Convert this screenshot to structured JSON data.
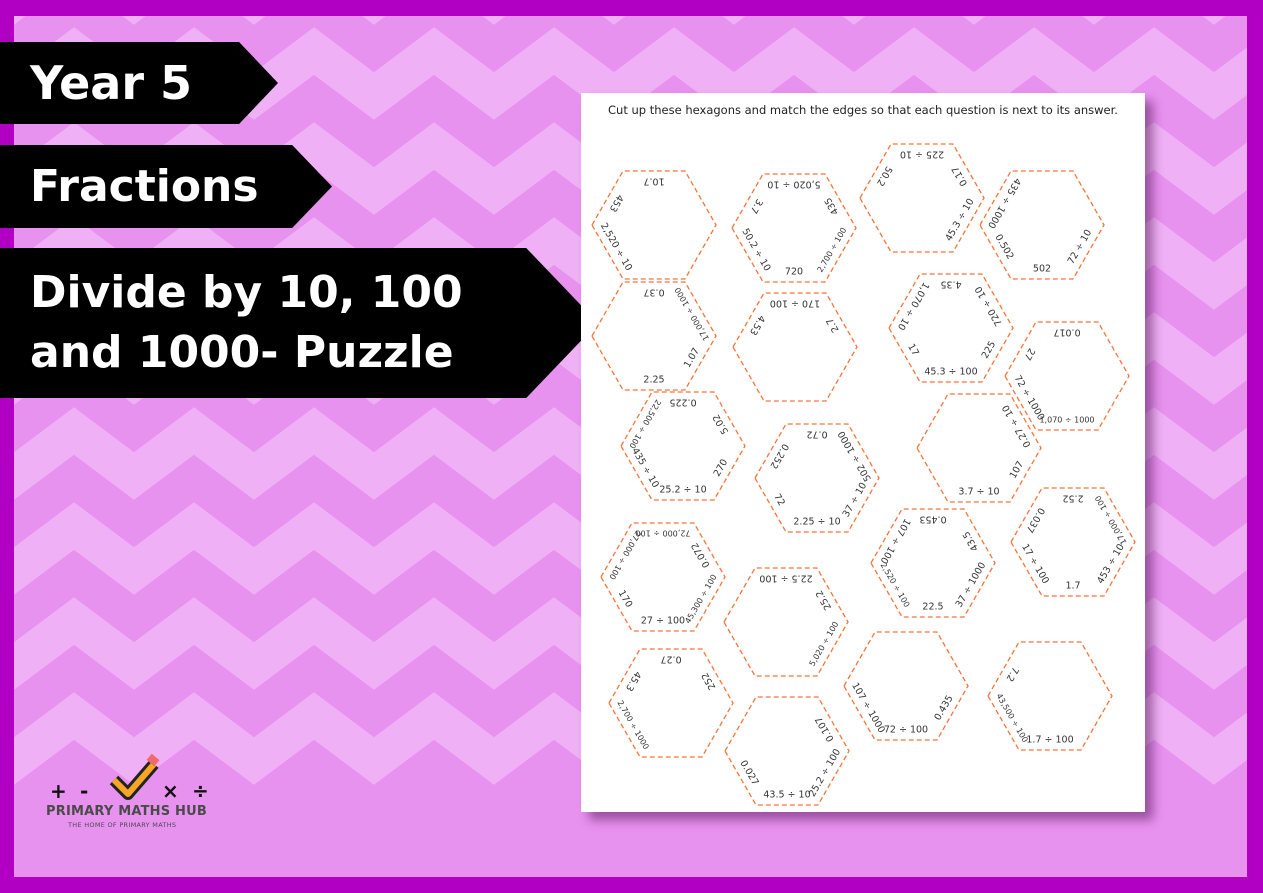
{
  "banners": {
    "year": "Year 5",
    "topic": "Fractions",
    "title_line1": "Divide by 10, 100",
    "title_line2": "and 1000- Puzzle"
  },
  "worksheet": {
    "instruction": "Cut up these hexagons and match the edges so that each question is next to its answer.",
    "hexagons": [
      {
        "top": "10.7",
        "upper_left": "453",
        "lower_left": "2,520 ÷ 10"
      },
      {
        "top": "5,020 ÷ 10",
        "upper_right": "435",
        "lower_right": "2,700 ÷ 100",
        "bottom": "720",
        "lower_left": "50.2 ÷ 10",
        "upper_left": "3.7"
      },
      {
        "top": "225 ÷ 10",
        "upper_left": "50.2",
        "upper_right": "0.17",
        "lower_right": "45.3 ÷ 10"
      },
      {
        "upper_left": "435 ÷ 1000",
        "lower_left": "0.502",
        "bottom": "502",
        "lower_right": "72 ÷ 10"
      },
      {
        "top": "0.37",
        "upper_right": "17,000 ÷ 1000",
        "lower_right": "1.07",
        "bottom": "2.25"
      },
      {
        "top": "170 ÷ 100",
        "upper_left": "4.53",
        "upper_right": "2.7"
      },
      {
        "top": "4.35",
        "upper_left": "1,070 ÷ 10",
        "upper_right": "720 ÷ 10",
        "lower_right": "225",
        "lower_left": "17",
        "bottom": "45.3 ÷ 100"
      },
      {
        "top": "0.017",
        "upper_left": "27",
        "lower_left": "72 ÷ 1000",
        "bottom": "1,070 ÷ 1000"
      },
      {
        "top": "0.225",
        "upper_left": "22,500 ÷ 100",
        "lower_left": "435 ÷ 10",
        "bottom": "25.2 ÷ 10",
        "lower_right": "270",
        "upper_right": "5.02"
      },
      {
        "top": "0.72",
        "upper_left": "0.252",
        "upper_right": "502 ÷ 1000",
        "lower_right": "37 ÷ 10",
        "bottom": "2.25 ÷ 10",
        "lower_left": "72"
      },
      {
        "upper_right": "0.27 ÷ 10",
        "lower_right": "107",
        "bottom": "3.7 ÷ 10"
      },
      {
        "top": "2.52",
        "upper_left": "0.037",
        "upper_right": "17,000 ÷ 100",
        "lower_left": "17 ÷ 100",
        "lower_right": "453 ÷ 10",
        "bottom": "1.7"
      },
      {
        "top": "72,000 ÷ 100",
        "upper_left": "27,000 ÷ 100",
        "upper_right": "0.072",
        "lower_left": "170",
        "bottom": "27 ÷ 100",
        "lower_right": "45,300 ÷ 100"
      },
      {
        "top": "0.453",
        "upper_left": "107 ÷ 100",
        "upper_right": "43.5",
        "lower_left": "2,520 ÷ 100",
        "lower_right": "37 ÷ 1000",
        "bottom": "22.5"
      },
      {
        "top": "22.5 ÷ 100",
        "upper_right": "25.2",
        "lower_right": "5,020 ÷ 100"
      },
      {
        "top": "0.27",
        "upper_left": "45.3",
        "upper_right": "252",
        "lower_left": "2,700 ÷ 1000"
      },
      {
        "upper_right": "0.107",
        "lower_right": "25.2 ÷ 100",
        "bottom": "43.5 ÷ 10",
        "lower_left": "0.027"
      },
      {
        "lower_left": "107 ÷ 1000",
        "bottom": "72 ÷ 100",
        "lower_right": "0.435"
      },
      {
        "upper_left": "7.2",
        "lower_left": "43,500 ÷ 100",
        "bottom": "1.7 ÷ 100"
      }
    ]
  },
  "logo": {
    "name": "PRIMARY MATHS HUB",
    "tagline": "THE HOME OF PRIMARY MATHS",
    "symbols": [
      "+",
      "-",
      "×",
      "÷"
    ]
  },
  "colors": {
    "border": "#b100c3",
    "background": "#e892f0",
    "stripe": "#f0b0f6",
    "hex_outline": "#f4763c",
    "banner": "#000000"
  }
}
